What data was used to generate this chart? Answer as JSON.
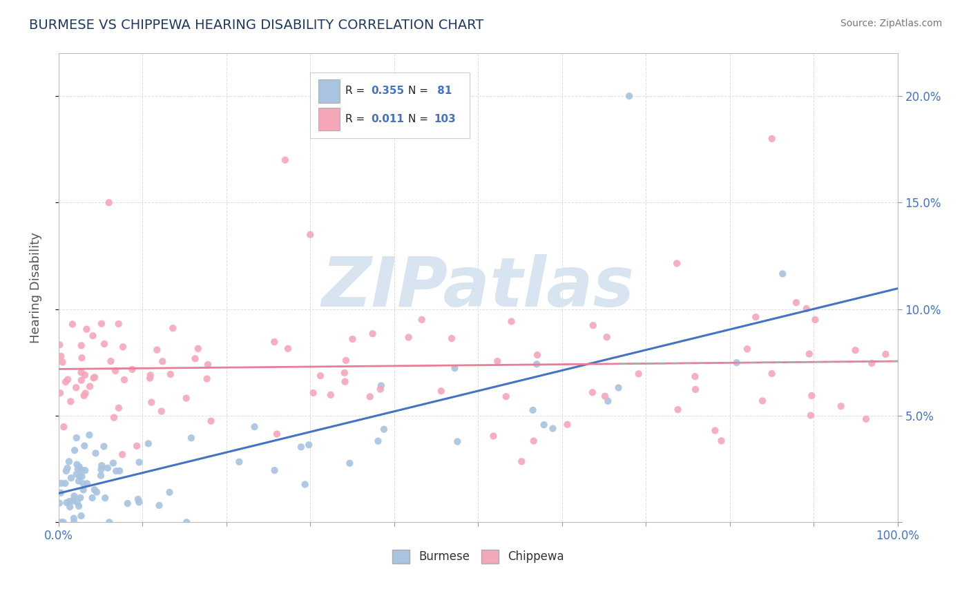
{
  "title": "BURMESE VS CHIPPEWA HEARING DISABILITY CORRELATION CHART",
  "source": "Source: ZipAtlas.com",
  "ylabel": "Hearing Disability",
  "legend_burmese": "Burmese",
  "legend_chippewa": "Chippewa",
  "R_burmese": 0.355,
  "N_burmese": 81,
  "R_chippewa": 0.011,
  "N_chippewa": 103,
  "burmese_color": "#a8c4e0",
  "chippewa_color": "#f4a7b9",
  "trendline_burmese_color": "#4472c4",
  "trendline_chippewa_color": "#e87d96",
  "watermark_color": "#d8e4f0",
  "background_color": "#ffffff",
  "grid_color": "#dddddd",
  "title_color": "#1f3864",
  "axis_label_color": "#4472c4",
  "legend_R_color": "#4472c4",
  "xlim": [
    0,
    100
  ],
  "ylim": [
    0,
    22
  ],
  "y_ticks": [
    0,
    5,
    10,
    15,
    20
  ],
  "x_ticks": [
    0,
    10,
    20,
    30,
    40,
    50,
    60,
    70,
    80,
    90,
    100
  ]
}
